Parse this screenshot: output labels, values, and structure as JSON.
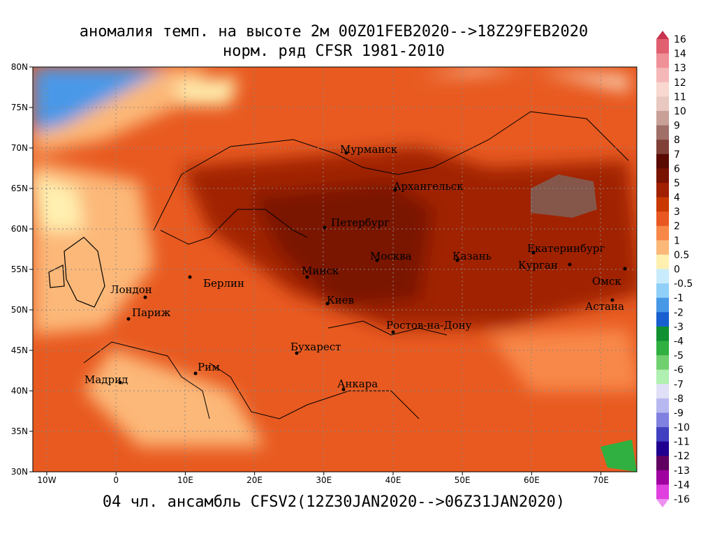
{
  "title": "аномалия темп. на высоте 2м 00Z01FEB2020-->18Z29FEB2020",
  "subtitle": "норм. ряд CFSR 1981-2010",
  "footer": "04 чл. ансамбль CFSV2(12Z30JAN2020-->06Z31JAN2020)",
  "map": {
    "yticks": [
      "80N",
      "75N",
      "70N",
      "65N",
      "60N",
      "55N",
      "50N",
      "45N",
      "40N",
      "35N",
      "30N"
    ],
    "xticks": [
      "10W",
      "0",
      "10E",
      "20E",
      "30E",
      "40E",
      "50E",
      "60E",
      "70E"
    ],
    "cities": [
      "Мурманск",
      "Архангельск",
      "Петербург",
      "Москва",
      "Казань",
      "Екатеринбург",
      "Курган",
      "Омск",
      "Астана",
      "Минск",
      "Киев",
      "Берлин",
      "Лондон",
      "Париж",
      "Бухарест",
      "Ростов-на-Дону",
      "Рим",
      "Мадрид",
      "Анкара"
    ]
  },
  "colorbar": {
    "labels": [
      16,
      14,
      13,
      12,
      11,
      10,
      9,
      8,
      7,
      6,
      5,
      4,
      3,
      2,
      1,
      0.5,
      0,
      -0.5,
      -1,
      -2,
      -3,
      -4,
      -5,
      -6,
      -7,
      -8,
      -9,
      -10,
      -11,
      -12,
      -13,
      -14,
      -16
    ],
    "colors": [
      "#c8324e",
      "#e06070",
      "#f09098",
      "#f5b8b8",
      "#f8d8d0",
      "#e8c8c0",
      "#c8a098",
      "#a07068",
      "#804038",
      "#5a0a00",
      "#7a1200",
      "#a02000",
      "#c83800",
      "#e85820",
      "#f88848",
      "#fcb878",
      "#fff0b0",
      "#c8ecfc",
      "#90d0f8",
      "#4898e8",
      "#1860d0",
      "#109030",
      "#30b040",
      "#70d070",
      "#b0f0b0",
      "#e0e0f8",
      "#b8b8f0",
      "#8080e0",
      "#4040c0",
      "#200090",
      "#600060",
      "#a000a0",
      "#e040e0",
      "#f090f0"
    ]
  }
}
